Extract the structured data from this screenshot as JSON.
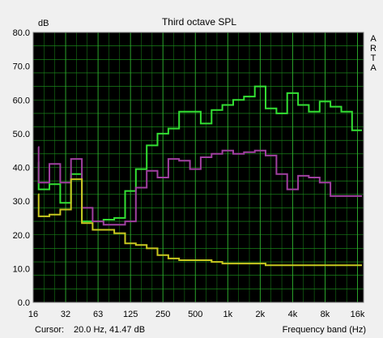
{
  "chart_data": {
    "type": "line",
    "title": "Third octave SPL",
    "ylabel": "dB",
    "xlabel": "Frequency band (Hz)",
    "side_label": [
      "A",
      "R",
      "T",
      "A"
    ],
    "ylim": [
      0,
      80
    ],
    "y_ticks": [
      "0.0",
      "10.0",
      "20.0",
      "30.0",
      "40.0",
      "50.0",
      "60.0",
      "70.0",
      "80.0"
    ],
    "x_tick_labels": [
      {
        "band": 0,
        "label": "16"
      },
      {
        "band": 3,
        "label": "32"
      },
      {
        "band": 6,
        "label": "63"
      },
      {
        "band": 9,
        "label": "125"
      },
      {
        "band": 12,
        "label": "250"
      },
      {
        "band": 15,
        "label": "500"
      },
      {
        "band": 18,
        "label": "1k"
      },
      {
        "band": 21,
        "label": "2k"
      },
      {
        "band": 24,
        "label": "4k"
      },
      {
        "band": 27,
        "label": "8k"
      },
      {
        "band": 30,
        "label": "16k"
      }
    ],
    "bands": [
      "16",
      "20",
      "25",
      "31.5",
      "40",
      "50",
      "63",
      "80",
      "100",
      "125",
      "160",
      "200",
      "250",
      "315",
      "400",
      "500",
      "630",
      "800",
      "1k",
      "1.25k",
      "1.6k",
      "2k",
      "2.5k",
      "3.15k",
      "4k",
      "5k",
      "6.3k",
      "8k",
      "10k",
      "12.5k",
      "16k"
    ],
    "grid": true,
    "series": [
      {
        "color": "#33e033",
        "values": [
          41.5,
          33.5,
          35,
          29.5,
          38,
          24,
          24,
          24.5,
          25,
          33,
          39.5,
          46.5,
          50,
          51.5,
          56.5,
          56.5,
          53,
          57,
          58.5,
          60,
          61,
          64,
          57.5,
          56,
          62,
          58.5,
          56.5,
          59.5,
          58,
          56.5,
          51
        ]
      },
      {
        "color": "#a040a0",
        "values": [
          46,
          35.5,
          41,
          35.5,
          42.5,
          28,
          24,
          23,
          23,
          24,
          34,
          39,
          37,
          42.5,
          42,
          39.5,
          43,
          44,
          45,
          44,
          44.5,
          45,
          43.5,
          38,
          33.5,
          37.5,
          37,
          35.5,
          31.5,
          31.5,
          31.5
        ]
      },
      {
        "color": "#c8c820",
        "values": [
          32,
          25.5,
          26,
          27.5,
          36.5,
          23.5,
          21.5,
          21.5,
          20.5,
          17.5,
          17,
          16,
          14,
          13,
          12.5,
          12.5,
          12.5,
          12,
          11.5,
          11.5,
          11.5,
          11.5,
          11,
          11,
          11,
          11,
          11,
          11,
          11,
          11,
          11
        ]
      }
    ]
  },
  "status": {
    "cursor_label": "Cursor:",
    "cursor_value": "20.0 Hz, 41.47 dB"
  }
}
